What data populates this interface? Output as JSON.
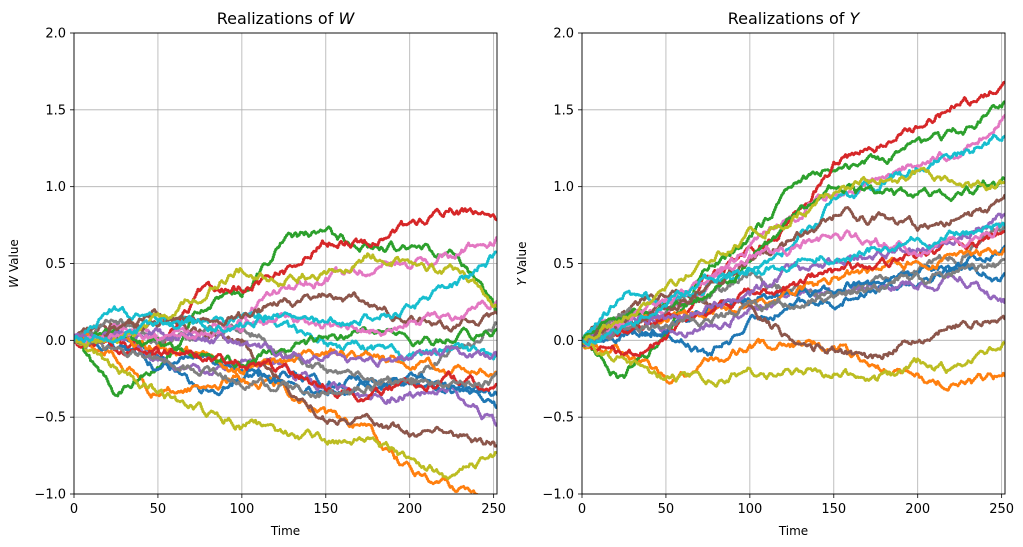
{
  "chart_data": [
    {
      "type": "line",
      "title_prefix": "Realizations of ",
      "title_var": "W",
      "xlabel": "Time",
      "ylabel_var": "W",
      "ylabel_suffix": " Value",
      "xlim": [
        0,
        252
      ],
      "ylim": [
        -1.0,
        2.0
      ],
      "xticks": [
        0,
        50,
        100,
        150,
        200,
        250
      ],
      "xtick_labels": [
        "0",
        "50",
        "100",
        "150",
        "200",
        "250"
      ],
      "yticks": [
        -1.0,
        -0.5,
        0.0,
        0.5,
        1.0,
        1.5,
        2.0
      ],
      "ytick_labels": [
        "−1.0",
        "−0.5",
        "0.0",
        "0.5",
        "1.0",
        "1.5",
        "2.0"
      ],
      "grid": true,
      "legend": "none",
      "x_points": [
        0,
        25,
        50,
        75,
        100,
        125,
        150,
        175,
        200,
        225,
        252
      ],
      "series": [
        {
          "color": "#1f77b4",
          "values": [
            0.0,
            0.05,
            -0.1,
            -0.35,
            -0.25,
            -0.2,
            -0.3,
            -0.25,
            -0.3,
            -0.3,
            -0.45
          ]
        },
        {
          "color": "#ff7f0e",
          "values": [
            0.0,
            -0.1,
            -0.35,
            -0.3,
            -0.25,
            -0.3,
            -0.5,
            -0.6,
            -0.85,
            -0.95,
            -1.0
          ]
        },
        {
          "color": "#2ca02c",
          "values": [
            0.0,
            -0.35,
            -0.2,
            0.2,
            0.3,
            0.65,
            0.7,
            0.6,
            0.6,
            0.55,
            0.2
          ]
        },
        {
          "color": "#d62728",
          "values": [
            0.0,
            0.0,
            -0.1,
            0.3,
            0.35,
            0.45,
            0.65,
            0.65,
            0.75,
            0.85,
            0.8
          ]
        },
        {
          "color": "#9467bd",
          "values": [
            0.0,
            0.05,
            -0.1,
            -0.2,
            -0.1,
            -0.2,
            -0.3,
            -0.35,
            -0.35,
            -0.35,
            -0.55
          ]
        },
        {
          "color": "#8c564b",
          "values": [
            0.0,
            0.1,
            0.2,
            0.05,
            0.0,
            -0.3,
            -0.5,
            -0.5,
            -0.6,
            -0.6,
            -0.7
          ]
        },
        {
          "color": "#e377c2",
          "values": [
            0.0,
            0.1,
            0.05,
            0.0,
            0.15,
            0.35,
            0.4,
            0.45,
            0.5,
            0.55,
            0.65
          ]
        },
        {
          "color": "#7f7f7f",
          "values": [
            0.0,
            0.15,
            0.0,
            0.05,
            0.1,
            -0.1,
            -0.2,
            -0.25,
            -0.3,
            -0.05,
            0.1
          ]
        },
        {
          "color": "#bcbd22",
          "values": [
            0.0,
            -0.2,
            -0.35,
            -0.45,
            -0.55,
            -0.6,
            -0.65,
            -0.65,
            -0.8,
            -0.85,
            -0.75
          ]
        },
        {
          "color": "#17becf",
          "values": [
            0.0,
            0.2,
            0.1,
            0.1,
            0.15,
            0.1,
            -0.05,
            -0.05,
            -0.1,
            -0.05,
            -0.1
          ]
        },
        {
          "color": "#1f77b4",
          "values": [
            0.0,
            -0.05,
            -0.2,
            -0.1,
            -0.15,
            -0.3,
            -0.35,
            -0.3,
            -0.25,
            -0.3,
            -0.35
          ]
        },
        {
          "color": "#ff7f0e",
          "values": [
            0.0,
            0.0,
            -0.05,
            -0.1,
            -0.2,
            -0.15,
            -0.1,
            -0.1,
            -0.15,
            -0.2,
            -0.2
          ]
        },
        {
          "color": "#2ca02c",
          "values": [
            0.0,
            0.05,
            -0.05,
            -0.1,
            -0.15,
            -0.05,
            0.0,
            0.05,
            0.0,
            0.0,
            0.05
          ]
        },
        {
          "color": "#d62728",
          "values": [
            0.0,
            -0.05,
            -0.05,
            -0.1,
            -0.15,
            -0.2,
            -0.3,
            -0.35,
            -0.3,
            -0.25,
            -0.3
          ]
        },
        {
          "color": "#9467bd",
          "values": [
            0.0,
            0.05,
            0.05,
            0.0,
            0.0,
            -0.1,
            -0.1,
            -0.15,
            -0.1,
            -0.05,
            -0.1
          ]
        },
        {
          "color": "#8c564b",
          "values": [
            0.0,
            0.05,
            0.1,
            0.15,
            0.15,
            0.25,
            0.3,
            0.25,
            0.15,
            0.1,
            0.15
          ]
        },
        {
          "color": "#e377c2",
          "values": [
            0.0,
            0.05,
            0.0,
            0.05,
            0.1,
            0.15,
            0.1,
            0.05,
            0.1,
            0.15,
            0.25
          ]
        },
        {
          "color": "#7f7f7f",
          "values": [
            0.0,
            -0.1,
            -0.1,
            -0.2,
            -0.25,
            -0.3,
            -0.35,
            -0.3,
            -0.25,
            -0.3,
            -0.25
          ]
        },
        {
          "color": "#bcbd22",
          "values": [
            0.0,
            0.0,
            0.15,
            0.3,
            0.45,
            0.4,
            0.45,
            0.55,
            0.5,
            0.45,
            0.25
          ]
        },
        {
          "color": "#17becf",
          "values": [
            0.0,
            0.05,
            0.1,
            0.1,
            0.1,
            0.15,
            0.1,
            0.15,
            0.2,
            0.35,
            0.55
          ]
        }
      ]
    },
    {
      "type": "line",
      "title_prefix": "Realizations of ",
      "title_var": "Y",
      "xlabel": "Time",
      "ylabel_var": "Y",
      "ylabel_suffix": " Value",
      "xlim": [
        0,
        252
      ],
      "ylim": [
        -1.0,
        2.0
      ],
      "xticks": [
        0,
        50,
        100,
        150,
        200,
        250
      ],
      "xtick_labels": [
        "0",
        "50",
        "100",
        "150",
        "200",
        "250"
      ],
      "yticks": [
        -1.0,
        -0.5,
        0.0,
        0.5,
        1.0,
        1.5,
        2.0
      ],
      "ytick_labels": [
        "−1.0",
        "−0.5",
        "0.0",
        "0.5",
        "1.0",
        "1.5",
        "2.0"
      ],
      "grid": true,
      "legend": "none",
      "x_points": [
        0,
        25,
        50,
        75,
        100,
        125,
        150,
        175,
        200,
        225,
        252
      ],
      "series": [
        {
          "color": "#1f77b4",
          "values": [
            0.0,
            0.1,
            0.05,
            -0.1,
            0.1,
            0.25,
            0.25,
            0.35,
            0.4,
            0.5,
            0.4
          ]
        },
        {
          "color": "#ff7f0e",
          "values": [
            0.0,
            -0.05,
            -0.25,
            -0.15,
            -0.05,
            0.0,
            -0.05,
            -0.15,
            -0.25,
            -0.3,
            -0.25
          ]
        },
        {
          "color": "#2ca02c",
          "values": [
            0.0,
            -0.25,
            0.05,
            0.45,
            0.65,
            1.0,
            1.15,
            1.15,
            1.25,
            1.35,
            1.55
          ]
        },
        {
          "color": "#d62728",
          "values": [
            0.0,
            -0.1,
            0.0,
            0.45,
            0.55,
            0.8,
            1.15,
            1.25,
            1.4,
            1.55,
            1.65
          ]
        },
        {
          "color": "#9467bd",
          "values": [
            0.0,
            0.1,
            0.05,
            0.1,
            0.2,
            0.3,
            0.3,
            0.35,
            0.35,
            0.4,
            0.25
          ]
        },
        {
          "color": "#8c564b",
          "values": [
            0.0,
            0.2,
            0.3,
            0.25,
            0.2,
            0.0,
            -0.05,
            -0.1,
            0.0,
            0.1,
            0.1
          ]
        },
        {
          "color": "#e377c2",
          "values": [
            0.0,
            0.15,
            0.2,
            0.35,
            0.6,
            0.8,
            0.95,
            1.05,
            1.15,
            1.25,
            1.45
          ]
        },
        {
          "color": "#7f7f7f",
          "values": [
            0.0,
            0.2,
            0.2,
            0.3,
            0.4,
            0.3,
            0.3,
            0.4,
            0.45,
            0.55,
            0.75
          ]
        },
        {
          "color": "#bcbd22",
          "values": [
            0.0,
            -0.15,
            -0.25,
            -0.25,
            -0.2,
            -0.2,
            -0.2,
            -0.25,
            -0.15,
            -0.2,
            0.0
          ]
        },
        {
          "color": "#17becf",
          "values": [
            0.0,
            0.3,
            0.25,
            0.35,
            0.45,
            0.6,
            0.9,
            1.0,
            1.15,
            1.2,
            1.35
          ]
        },
        {
          "color": "#1f77b4",
          "values": [
            0.0,
            0.05,
            0.1,
            0.2,
            0.25,
            0.3,
            0.35,
            0.4,
            0.45,
            0.5,
            0.6
          ]
        },
        {
          "color": "#ff7f0e",
          "values": [
            0.0,
            0.1,
            0.15,
            0.2,
            0.25,
            0.3,
            0.4,
            0.45,
            0.5,
            0.55,
            0.6
          ]
        },
        {
          "color": "#2ca02c",
          "values": [
            0.0,
            0.15,
            0.2,
            0.3,
            0.5,
            0.8,
            1.0,
            0.95,
            0.95,
            0.95,
            1.05
          ]
        },
        {
          "color": "#d62728",
          "values": [
            0.0,
            0.05,
            0.15,
            0.2,
            0.3,
            0.35,
            0.45,
            0.5,
            0.55,
            0.6,
            0.7
          ]
        },
        {
          "color": "#9467bd",
          "values": [
            0.0,
            0.1,
            0.15,
            0.2,
            0.3,
            0.45,
            0.5,
            0.55,
            0.6,
            0.65,
            0.8
          ]
        },
        {
          "color": "#8c564b",
          "values": [
            0.0,
            0.1,
            0.2,
            0.35,
            0.5,
            0.65,
            0.8,
            0.8,
            0.75,
            0.8,
            0.9
          ]
        },
        {
          "color": "#e377c2",
          "values": [
            0.0,
            0.1,
            0.25,
            0.4,
            0.55,
            0.6,
            0.7,
            0.65,
            0.6,
            0.65,
            0.75
          ]
        },
        {
          "color": "#7f7f7f",
          "values": [
            0.0,
            0.05,
            0.1,
            0.15,
            0.2,
            0.25,
            0.3,
            0.35,
            0.4,
            0.45,
            0.5
          ]
        },
        {
          "color": "#bcbd22",
          "values": [
            0.0,
            0.15,
            0.3,
            0.5,
            0.7,
            0.8,
            0.95,
            1.05,
            1.1,
            1.05,
            1.0
          ]
        },
        {
          "color": "#17becf",
          "values": [
            0.0,
            0.1,
            0.25,
            0.4,
            0.45,
            0.5,
            0.55,
            0.6,
            0.65,
            0.7,
            0.75
          ]
        }
      ]
    }
  ]
}
